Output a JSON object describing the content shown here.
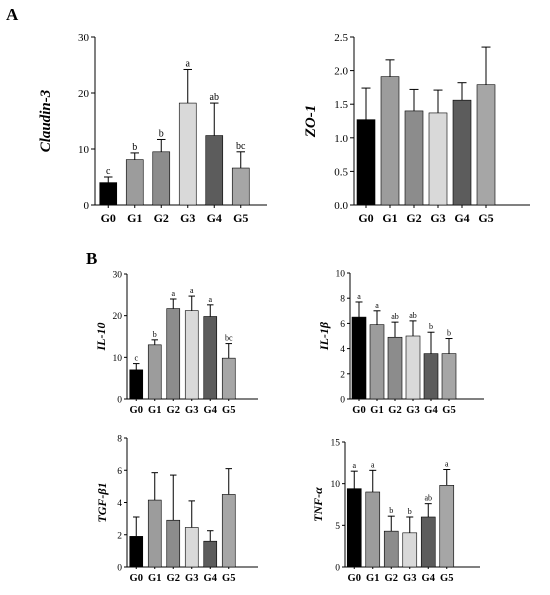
{
  "panel_labels": [
    "A",
    "B"
  ],
  "chart_data": [
    {
      "type": "bar",
      "ylabel": "Claudin-3",
      "categories": [
        "G0",
        "G1",
        "G2",
        "G3",
        "G4",
        "G5"
      ],
      "values": [
        4.0,
        8.1,
        9.5,
        18.2,
        12.4,
        6.6
      ],
      "errors": [
        1.0,
        1.2,
        2.2,
        6.0,
        5.8,
        2.9
      ],
      "significance": [
        "c",
        "b",
        "b",
        "a",
        "ab",
        "bc"
      ],
      "ylim": [
        0,
        30
      ],
      "yticks": [
        "0",
        "10",
        "20",
        "30"
      ],
      "colors": [
        "#000000",
        "#9c9c9c",
        "#8c8c8c",
        "#d9d9d9",
        "#5c5c5c",
        "#a6a6a6"
      ]
    },
    {
      "type": "bar",
      "ylabel": "ZO-1",
      "categories": [
        "G0",
        "G1",
        "G2",
        "G3",
        "G4",
        "G5"
      ],
      "values": [
        1.27,
        1.91,
        1.4,
        1.37,
        1.56,
        1.79
      ],
      "errors": [
        0.47,
        0.25,
        0.32,
        0.34,
        0.26,
        0.56
      ],
      "significance": [
        "",
        "",
        "",
        "",
        "",
        ""
      ],
      "ylim": [
        0,
        2.5
      ],
      "yticks": [
        "0.0",
        "0.5",
        "1.0",
        "1.5",
        "2.0",
        "2.5"
      ],
      "colors": [
        "#000000",
        "#9c9c9c",
        "#8c8c8c",
        "#d9d9d9",
        "#5c5c5c",
        "#a6a6a6"
      ]
    },
    {
      "type": "bar",
      "ylabel": "IL-10",
      "categories": [
        "G0",
        "G1",
        "G2",
        "G3",
        "G4",
        "G5"
      ],
      "values": [
        7.0,
        13.0,
        21.7,
        21.2,
        19.8,
        9.8
      ],
      "errors": [
        1.5,
        1.2,
        2.3,
        3.5,
        2.8,
        3.5
      ],
      "significance": [
        "c",
        "b",
        "a",
        "a",
        "a",
        "bc"
      ],
      "ylim": [
        0,
        30
      ],
      "yticks": [
        "0",
        "10",
        "20",
        "30"
      ],
      "colors": [
        "#000000",
        "#9c9c9c",
        "#8c8c8c",
        "#d9d9d9",
        "#5c5c5c",
        "#a6a6a6"
      ]
    },
    {
      "type": "bar",
      "ylabel": "IL-1β",
      "categories": [
        "G0",
        "G1",
        "G2",
        "G3",
        "G4",
        "G5"
      ],
      "values": [
        6.5,
        5.9,
        4.9,
        5.0,
        3.6,
        3.6
      ],
      "errors": [
        1.2,
        1.1,
        1.2,
        1.2,
        1.7,
        1.2
      ],
      "significance": [
        "a",
        "a",
        "ab",
        "ab",
        "b",
        "b"
      ],
      "ylim": [
        0,
        10
      ],
      "yticks": [
        "0",
        "2",
        "4",
        "6",
        "8",
        "10"
      ],
      "colors": [
        "#000000",
        "#9c9c9c",
        "#8c8c8c",
        "#d9d9d9",
        "#5c5c5c",
        "#a6a6a6"
      ]
    },
    {
      "type": "bar",
      "ylabel": "TGF-β1",
      "categories": [
        "G0",
        "G1",
        "G2",
        "G3",
        "G4",
        "G5"
      ],
      "values": [
        1.9,
        4.15,
        2.9,
        2.45,
        1.6,
        4.5
      ],
      "errors": [
        1.2,
        1.7,
        2.8,
        1.65,
        0.65,
        1.6
      ],
      "significance": [
        "",
        "",
        "",
        "",
        "",
        ""
      ],
      "ylim": [
        0,
        8
      ],
      "yticks": [
        "0",
        "2",
        "4",
        "6",
        "8"
      ],
      "colors": [
        "#000000",
        "#9c9c9c",
        "#8c8c8c",
        "#d9d9d9",
        "#5c5c5c",
        "#a6a6a6"
      ]
    },
    {
      "type": "bar",
      "ylabel": "TNF-α",
      "categories": [
        "G0",
        "G1",
        "G2",
        "G3",
        "G4",
        "G5"
      ],
      "values": [
        9.4,
        9.0,
        4.3,
        4.1,
        6.0,
        9.8
      ],
      "errors": [
        2.1,
        2.6,
        1.8,
        1.9,
        1.6,
        1.9
      ],
      "significance": [
        "a",
        "a",
        "b",
        "b",
        "ab",
        "a"
      ],
      "ylim": [
        0,
        15
      ],
      "yticks": [
        "0",
        "5",
        "10",
        "15"
      ],
      "colors": [
        "#000000",
        "#9c9c9c",
        "#8c8c8c",
        "#d9d9d9",
        "#5c5c5c",
        "#a6a6a6"
      ]
    }
  ]
}
